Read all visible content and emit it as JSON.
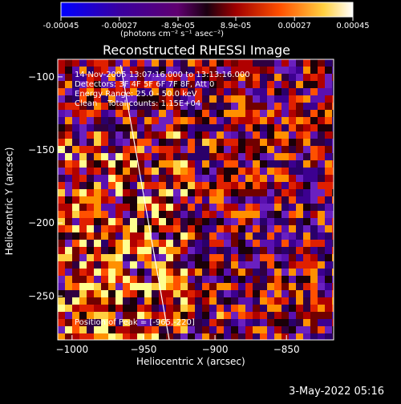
{
  "colorbar": {
    "tick_labels": [
      "-0.00045",
      "-0.00027",
      "-8.9e-05",
      "8.9e-05",
      "0.00027",
      "0.00045"
    ],
    "tick_values": [
      -0.00045,
      -0.00027,
      -8.9e-05,
      8.9e-05,
      0.00027,
      0.00045
    ],
    "range": [
      -0.00045,
      0.00045
    ],
    "units_label": "(photons cm⁻² s⁻¹ asec⁻²)",
    "colormap": [
      "#0000ff",
      "#4b0082",
      "#8b0080",
      "#ff2000",
      "#ff9000",
      "#ffff80",
      "#ffffff"
    ]
  },
  "chart_data": {
    "type": "heatmap",
    "title": "Reconstructed RHESSI Image",
    "xlabel": "Heliocentric X (arcsec)",
    "ylabel": "Heliocentric Y (arcsec)",
    "xlim": [
      -1010,
      -817
    ],
    "ylim": [
      -280,
      -88
    ],
    "x_ticks": [
      -1000,
      -950,
      -900,
      -850
    ],
    "x_tick_labels": [
      "−1000",
      "−950",
      "−900",
      "−850"
    ],
    "y_ticks": [
      -250,
      -200,
      -150,
      -100
    ],
    "y_tick_labels": [
      "−250",
      "−200",
      "−150",
      "−100"
    ],
    "limb_line": [
      [
        -966,
        -92
      ],
      [
        -932,
        -280
      ]
    ],
    "peak": [
      -965,
      -220
    ],
    "annotations": [
      "14-Nov-2005 13:07:16.000 to 13:13:16.000",
      "Detectors: 3F 4F 5F 6F 7F 8F, Att 0",
      "Energy Range: 25.0 - 50.0 keV",
      "Clean    Total counts: 1.15E+04"
    ],
    "peak_label": "Position of Peak = [-965,-220]",
    "grid": false
  },
  "footer": {
    "timestamp": "3-May-2022 05:16"
  }
}
